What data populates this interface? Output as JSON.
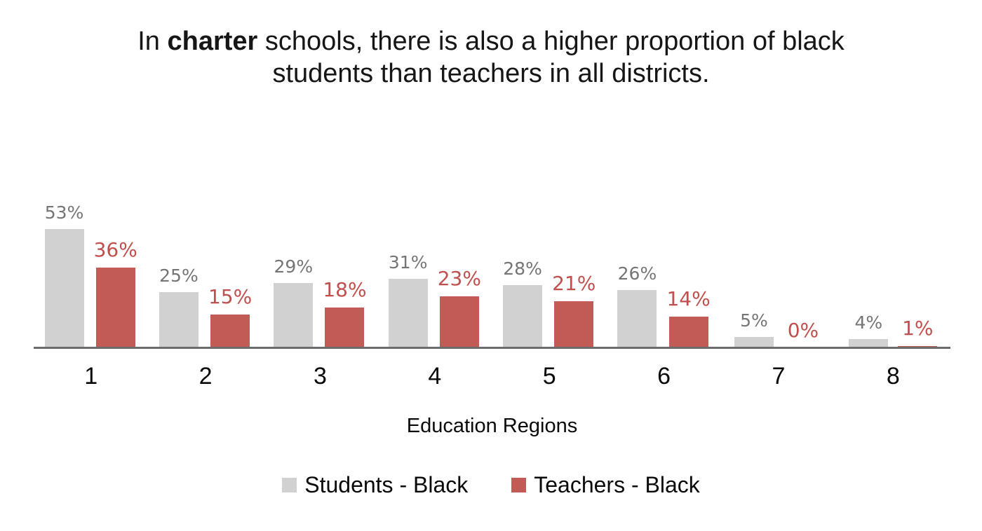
{
  "title": {
    "line1_pre": "In ",
    "line1_bold": "charter",
    "line1_post": " schools, there is also a higher proportion of black",
    "line2": "students than teachers in all districts."
  },
  "chart_data": {
    "type": "bar",
    "title": "In charter schools, there is also a higher proportion of black students than teachers in all districts.",
    "categories": [
      "1",
      "2",
      "3",
      "4",
      "5",
      "6",
      "7",
      "8"
    ],
    "series": [
      {
        "name": "Students - Black",
        "color": "#D1D1D1",
        "label_color": "#757575",
        "values": [
          53,
          25,
          29,
          31,
          28,
          26,
          5,
          4
        ]
      },
      {
        "name": "Teachers - Black",
        "color": "#C25A55",
        "label_color": "#C0504D",
        "values": [
          36,
          15,
          18,
          23,
          21,
          14,
          0,
          1
        ]
      }
    ],
    "value_suffix": "%",
    "xlabel": "Education Regions",
    "ylabel": "",
    "ylim": [
      0,
      60
    ],
    "grid": false,
    "legend_position": "bottom",
    "data_labels": "outside-end",
    "axis_line_color": "#6b6b6b"
  }
}
